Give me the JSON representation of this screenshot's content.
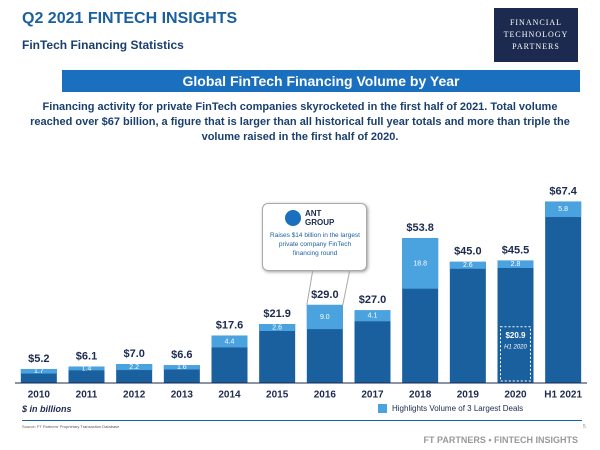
{
  "header": {
    "title": "Q2 2021 FINTECH INSIGHTS",
    "subtitle": "FinTech Financing Statistics",
    "logo": [
      "FINANCIAL",
      "TECHNOLOGY",
      "PARTNERS"
    ]
  },
  "footer": {
    "source": "Source: FT Partners' Proprietary Transaction Database",
    "brand": "FT PARTNERS • FINTECH INSIGHTS",
    "page": "5"
  },
  "chart_data": {
    "type": "bar",
    "title": "Global FinTech Financing Volume by Year",
    "description": "Financing activity for private FinTech companies skyrocketed in the first half of 2021. Total volume reached over $67 billion, a figure that is larger than all historical full year totals and more than triple the volume raised in the first half of 2020.",
    "categories": [
      "2010",
      "2011",
      "2012",
      "2013",
      "2014",
      "2015",
      "2016",
      "2017",
      "2018",
      "2019",
      "2020",
      "H1 2021"
    ],
    "series": [
      {
        "name": "Total",
        "color": "#1a5f9e",
        "values": [
          5.2,
          6.1,
          7.0,
          6.6,
          17.6,
          21.9,
          29.0,
          27.0,
          53.8,
          45.0,
          45.5,
          67.4
        ],
        "value_labels": [
          "$5.2",
          "$6.1",
          "$7.0",
          "$6.6",
          "$17.6",
          "$21.9",
          "$29.0",
          "$27.0",
          "$53.8",
          "$45.0",
          "$45.5",
          "$67.4"
        ]
      },
      {
        "name": "Highlights Volume of 3 Largest Deals",
        "color": "#4aa3df",
        "values": [
          1.7,
          1.4,
          2.2,
          1.6,
          4.4,
          2.6,
          9.0,
          4.1,
          18.8,
          2.6,
          2.8,
          5.8
        ],
        "value_labels": [
          "1.7",
          "1.4",
          "2.2",
          "1.6",
          "4.4",
          "2.6",
          "9.0",
          "4.1",
          "18.8",
          "2.6",
          "2.8",
          "5.8"
        ]
      }
    ],
    "h1_2020": {
      "value": 20.9,
      "value_label": "$20.9",
      "label": "H1 2020"
    },
    "callout": {
      "title": "ANT GROUP",
      "text": "Raises $14 billion in the largest private company FinTech financing round"
    },
    "unit_note": "$ in billions",
    "ylim": [
      0,
      75
    ]
  }
}
